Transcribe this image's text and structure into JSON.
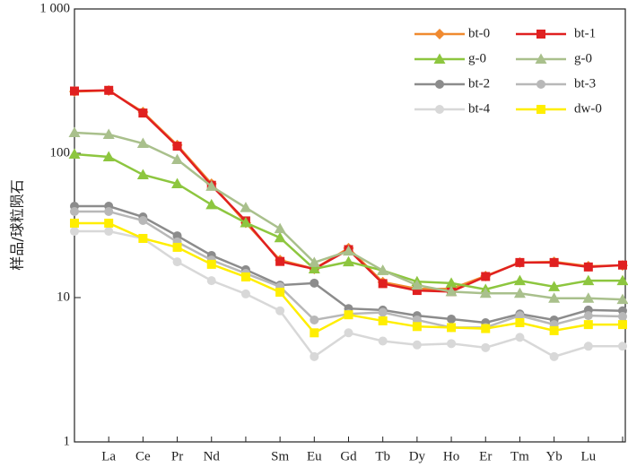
{
  "chart_data": {
    "type": "line",
    "ylabel": "样品/球粒陨石",
    "categories": [
      null,
      "La",
      "Ce",
      "Pr",
      "Nd",
      null,
      "Sm",
      "Eu",
      "Gd",
      "Tb",
      "Dy",
      "Ho",
      "Er",
      "Tm",
      "Yb",
      "Lu",
      null
    ],
    "log_y": true,
    "ylim": [
      1,
      1000
    ],
    "yticks": [
      1,
      10,
      100,
      {
        "value": 1000,
        "label": "1 000"
      }
    ],
    "legend": "top-right",
    "series": [
      {
        "name": "bt-0",
        "color": "#f08a30",
        "marker": "diamond",
        "values": [
          268,
          272,
          193,
          114,
          61.5,
          33,
          18.2,
          15.8,
          22,
          12.8,
          11.5,
          11.5,
          14.1,
          17.5,
          17.7,
          16.5,
          16.7
        ]
      },
      {
        "name": "bt-1",
        "color": "#e02020",
        "marker": "square",
        "values": [
          270,
          273,
          190,
          112,
          60,
          34,
          17.8,
          15.8,
          21.5,
          12.5,
          11.2,
          11,
          14,
          17.5,
          17.5,
          16.3,
          16.8
        ]
      },
      {
        "name": "g-0",
        "color": "#8dc63f",
        "marker": "triangle",
        "values": [
          98.6,
          94.5,
          71,
          61.5,
          44,
          33,
          26,
          15.8,
          17.7,
          15.4,
          12.9,
          12.6,
          11.4,
          13.1,
          11.9,
          13.1,
          13.1
        ]
      },
      {
        "name": "g-0",
        "color": "#a9c08c",
        "marker": "triangle",
        "values": [
          139,
          135,
          117,
          90.5,
          59,
          42,
          30,
          17.5,
          21,
          15.4,
          12.2,
          11,
          10.7,
          10.7,
          9.9,
          9.9,
          9.7
        ]
      },
      {
        "name": "bt-2",
        "color": "#8c8c8c",
        "marker": "circle",
        "values": [
          43,
          43,
          36.2,
          26.8,
          19.6,
          15.6,
          12.2,
          12.6,
          8.4,
          8.2,
          7.5,
          7.1,
          6.7,
          7.7,
          7.0,
          8.2,
          8.1
        ]
      },
      {
        "name": "bt-3",
        "color": "#b8b8b8",
        "marker": "circle",
        "values": [
          39.5,
          39.5,
          34.2,
          24.3,
          18.2,
          14.7,
          11.9,
          7.0,
          7.7,
          7.9,
          7.0,
          6.2,
          6.2,
          7.5,
          6.5,
          7.5,
          7.4
        ]
      },
      {
        "name": "bt-4",
        "color": "#d8d8d8",
        "marker": "circle",
        "values": [
          28.8,
          28.8,
          25.7,
          17.7,
          13.1,
          10.6,
          8.1,
          3.9,
          5.7,
          5.0,
          4.7,
          4.8,
          4.5,
          5.3,
          3.9,
          4.6,
          4.6
        ]
      },
      {
        "name": "dw-0",
        "color": "#ffee00",
        "marker": "square",
        "values": [
          32.8,
          32.8,
          25.7,
          22.3,
          17,
          13.9,
          10.9,
          5.7,
          7.6,
          6.9,
          6.3,
          6.2,
          6.1,
          6.7,
          5.9,
          6.5,
          6.5
        ]
      }
    ]
  }
}
